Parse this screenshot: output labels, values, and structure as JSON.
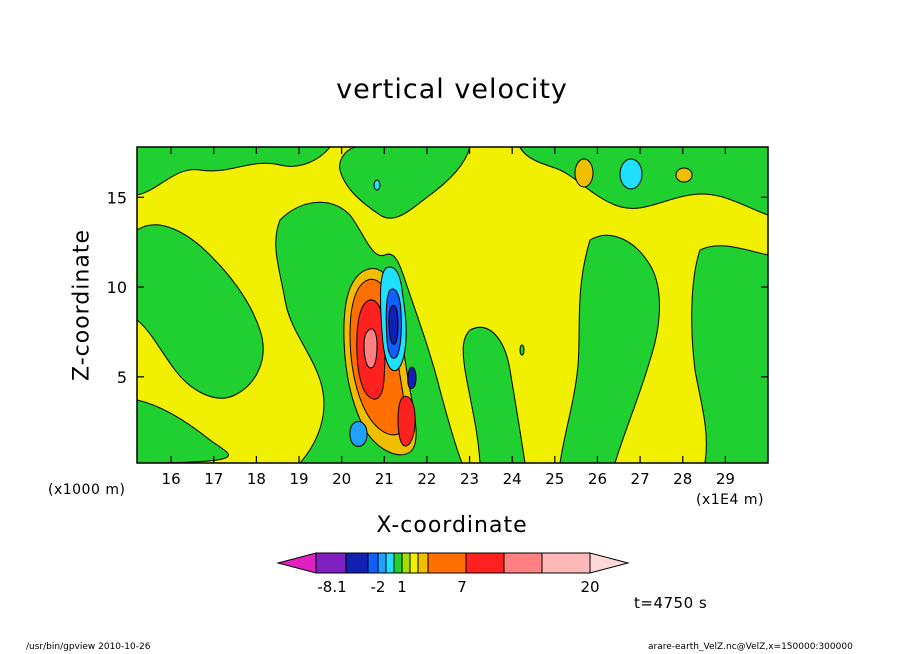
{
  "chart_data": {
    "type": "heatmap",
    "title": "vertical velocity",
    "xlabel": "X-coordinate",
    "ylabel": "Z-coordinate",
    "x_units_label": "(x1000 m)",
    "x_units_label2": "(x1E4 m)",
    "x_ticks": [
      16,
      17,
      18,
      19,
      20,
      21,
      22,
      23,
      24,
      25,
      26,
      27,
      28,
      29
    ],
    "y_ticks": [
      5,
      10,
      15
    ],
    "xlim": [
      15.2,
      30.0
    ],
    "ylim": [
      0.2,
      17.8
    ],
    "colorbar": {
      "labels": [
        "-8.1",
        "-2",
        "1",
        "7",
        "20"
      ],
      "colors": [
        "#e020c0",
        "#8020c0",
        "#1020b0",
        "#1060ff",
        "#20a0ff",
        "#20e0ff",
        "#20d030",
        "#a0e000",
        "#f0f000",
        "#f0c000",
        "#ff7000",
        "#ff2020",
        "#ff8080",
        "#ffb8b8",
        "#ffd8d8"
      ]
    },
    "time_label": "t=4750 s",
    "features": [
      {
        "name": "updraft-core",
        "x": 20.5,
        "z": 6.5,
        "level": "max"
      },
      {
        "name": "downdraft-core",
        "x": 21.1,
        "z": 7.5,
        "level": "negative"
      },
      {
        "name": "cell-top-1",
        "x": 25.6,
        "z": 16.2,
        "level": "positive"
      },
      {
        "name": "cell-top-2",
        "x": 26.8,
        "z": 16.2,
        "level": "negative"
      },
      {
        "name": "cell-top-3",
        "x": 28.0,
        "z": 16.1,
        "level": "positive"
      }
    ]
  },
  "footer": {
    "left": "/usr/bin/gpview   2010-10-26",
    "right": "arare-earth_VelZ.nc@VelZ,x=150000:300000"
  }
}
